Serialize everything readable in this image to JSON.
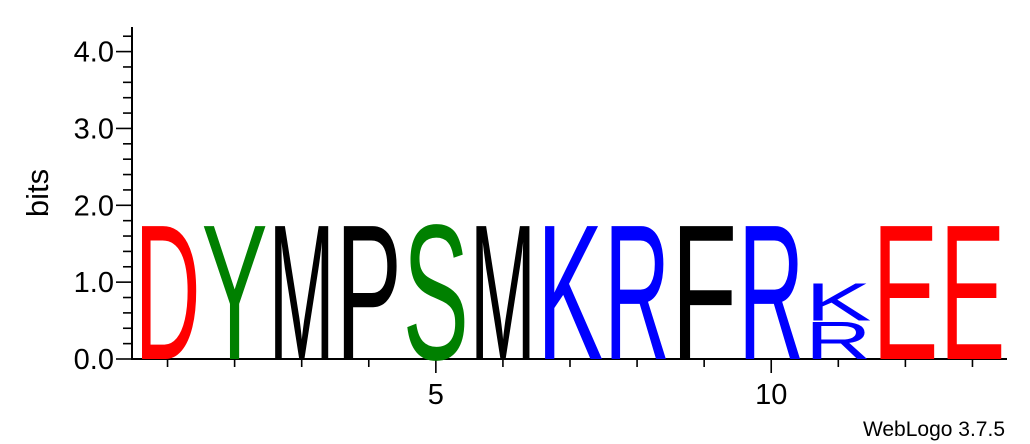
{
  "chart_data": {
    "type": "sequence-logo",
    "ylabel": "bits",
    "ylim": [
      0,
      4.32
    ],
    "yticks": [
      "0.0",
      "1.0",
      "2.0",
      "3.0",
      "4.0"
    ],
    "yticks_values": [
      0,
      1,
      2,
      3,
      4
    ],
    "xticks": [
      "5",
      "10"
    ],
    "xticks_values": [
      5,
      10
    ],
    "positions": [
      {
        "pos": 1,
        "stack": [
          {
            "letter": "D",
            "bits": 1.8
          }
        ]
      },
      {
        "pos": 2,
        "stack": [
          {
            "letter": "Y",
            "bits": 1.8
          }
        ]
      },
      {
        "pos": 3,
        "stack": [
          {
            "letter": "M",
            "bits": 1.8
          }
        ]
      },
      {
        "pos": 4,
        "stack": [
          {
            "letter": "P",
            "bits": 1.8
          }
        ]
      },
      {
        "pos": 5,
        "stack": [
          {
            "letter": "S",
            "bits": 1.8
          }
        ]
      },
      {
        "pos": 6,
        "stack": [
          {
            "letter": "M",
            "bits": 1.8
          }
        ]
      },
      {
        "pos": 7,
        "stack": [
          {
            "letter": "K",
            "bits": 1.8
          }
        ]
      },
      {
        "pos": 8,
        "stack": [
          {
            "letter": "R",
            "bits": 1.8
          }
        ]
      },
      {
        "pos": 9,
        "stack": [
          {
            "letter": "F",
            "bits": 1.8
          }
        ]
      },
      {
        "pos": 10,
        "stack": [
          {
            "letter": "R",
            "bits": 1.8
          }
        ]
      },
      {
        "pos": 11,
        "stack": [
          {
            "letter": "R",
            "bits": 0.5
          },
          {
            "letter": "K",
            "bits": 0.5
          }
        ]
      },
      {
        "pos": 12,
        "stack": [
          {
            "letter": "E",
            "bits": 1.8
          }
        ]
      },
      {
        "pos": 13,
        "stack": [
          {
            "letter": "E",
            "bits": 1.8
          }
        ]
      }
    ],
    "colors": {
      "D": "#ff0000",
      "E": "#ff0000",
      "Y": "#008000",
      "S": "#008000",
      "M": "#000000",
      "P": "#000000",
      "F": "#000000",
      "K": "#0000ff",
      "R": "#0000ff"
    }
  },
  "footer": {
    "credit": "WebLogo 3.7.5"
  }
}
